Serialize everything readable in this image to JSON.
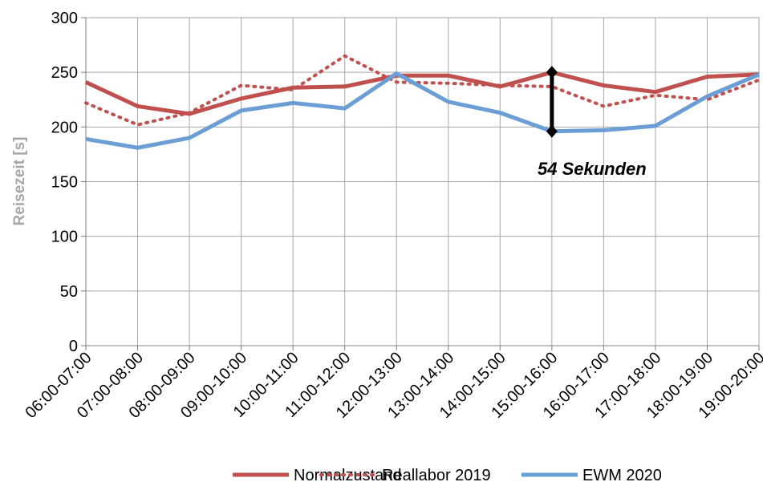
{
  "chart_data": {
    "type": "line",
    "ylabel": "Reisezeit [s]",
    "categories": [
      "06:00-07:00",
      "07:00-08:00",
      "08:00-09:00",
      "09:00-10:00",
      "10:00-11:00",
      "11:00-12:00",
      "12:00-13:00",
      "13:00-14:00",
      "14:00-15:00",
      "15:00-16:00",
      "16:00-17:00",
      "17:00-18:00",
      "18:00-19:00",
      "19:00-20:00"
    ],
    "series": [
      {
        "name": "Normalzustand",
        "color": "#c0504d",
        "style": "solid",
        "values": [
          241,
          219,
          212,
          226,
          236,
          237,
          247,
          247,
          237,
          250,
          238,
          232,
          246,
          248
        ]
      },
      {
        "name": "Reallabor 2019",
        "color": "#c0504d",
        "style": "dotted",
        "values": [
          222,
          202,
          213,
          238,
          234,
          265,
          241,
          240,
          238,
          237,
          219,
          229,
          225,
          243
        ]
      },
      {
        "name": "EWM 2020",
        "color": "#6c9ed6",
        "style": "solid",
        "values": [
          189,
          181,
          190,
          215,
          222,
          217,
          249,
          223,
          213,
          196,
          197,
          201,
          228,
          248
        ]
      }
    ],
    "annotation": {
      "text": "54 Sekunden",
      "at": "15:00-16:00"
    },
    "ylim": [
      0,
      300
    ],
    "yticks": [
      0,
      50,
      100,
      150,
      200,
      250,
      300
    ],
    "grid": true,
    "legend": "bottom"
  }
}
